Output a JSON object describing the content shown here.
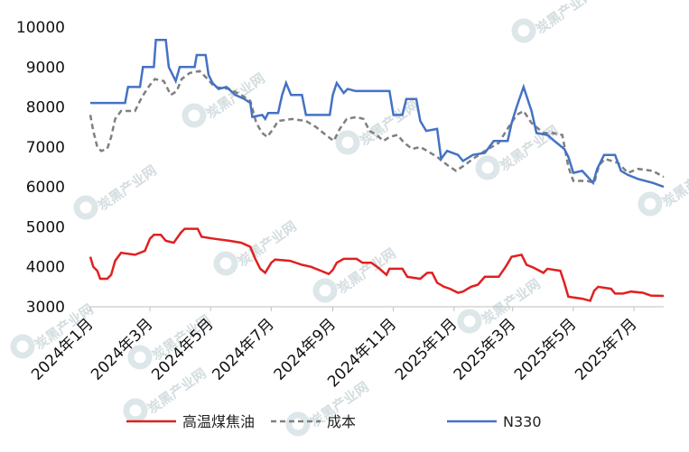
{
  "watermark": {
    "text": "炭黑产业网"
  },
  "chart_data": {
    "type": "line",
    "title": "",
    "xlabel": "",
    "ylabel": "",
    "ylim": [
      3000,
      10000
    ],
    "yticks": [
      3000,
      4000,
      5000,
      6000,
      7000,
      8000,
      9000,
      10000
    ],
    "xlim": [
      "2024-01-01",
      "2025-07-31"
    ],
    "xticks": [
      {
        "label": "2024年1月",
        "date": "2024-01-01"
      },
      {
        "label": "2024年3月",
        "date": "2024-03-01"
      },
      {
        "label": "2024年5月",
        "date": "2024-05-01"
      },
      {
        "label": "2024年7月",
        "date": "2024-07-01"
      },
      {
        "label": "2024年9月",
        "date": "2024-09-01"
      },
      {
        "label": "2024年11月",
        "date": "2024-11-01"
      },
      {
        "label": "2025年1月",
        "date": "2025-01-01"
      },
      {
        "label": "2025年3月",
        "date": "2025-03-01"
      },
      {
        "label": "2025年5月",
        "date": "2025-05-01"
      },
      {
        "label": "2025年7月",
        "date": "2025-07-01"
      }
    ],
    "grid": false,
    "legend": "bottom",
    "series": [
      {
        "name": "高温煤焦油",
        "color": "#e02020",
        "dash": "solid",
        "points": [
          [
            "2024-01-01",
            4250
          ],
          [
            "2024-01-04",
            4000
          ],
          [
            "2024-01-08",
            3900
          ],
          [
            "2024-01-11",
            3700
          ],
          [
            "2024-01-18",
            3700
          ],
          [
            "2024-01-22",
            3800
          ],
          [
            "2024-01-26",
            4150
          ],
          [
            "2024-02-01",
            4350
          ],
          [
            "2024-02-15",
            4300
          ],
          [
            "2024-02-25",
            4400
          ],
          [
            "2024-03-01",
            4700
          ],
          [
            "2024-03-05",
            4800
          ],
          [
            "2024-03-12",
            4800
          ],
          [
            "2024-03-17",
            4650
          ],
          [
            "2024-03-25",
            4600
          ],
          [
            "2024-04-01",
            4850
          ],
          [
            "2024-04-05",
            4950
          ],
          [
            "2024-04-18",
            4950
          ],
          [
            "2024-04-22",
            4750
          ],
          [
            "2024-05-05",
            4700
          ],
          [
            "2024-05-20",
            4650
          ],
          [
            "2024-06-01",
            4600
          ],
          [
            "2024-06-10",
            4500
          ],
          [
            "2024-06-15",
            4200
          ],
          [
            "2024-06-20",
            3950
          ],
          [
            "2024-06-25",
            3850
          ],
          [
            "2024-07-01",
            4100
          ],
          [
            "2024-07-05",
            4180
          ],
          [
            "2024-07-20",
            4150
          ],
          [
            "2024-08-01",
            4050
          ],
          [
            "2024-08-10",
            4000
          ],
          [
            "2024-08-20",
            3900
          ],
          [
            "2024-08-28",
            3820
          ],
          [
            "2024-09-01",
            3920
          ],
          [
            "2024-09-05",
            4100
          ],
          [
            "2024-09-12",
            4200
          ],
          [
            "2024-09-25",
            4200
          ],
          [
            "2024-10-01",
            4100
          ],
          [
            "2024-10-10",
            4100
          ],
          [
            "2024-10-18",
            3950
          ],
          [
            "2024-10-25",
            3800
          ],
          [
            "2024-10-28",
            3950
          ],
          [
            "2024-11-10",
            3950
          ],
          [
            "2024-11-15",
            3750
          ],
          [
            "2024-11-28",
            3700
          ],
          [
            "2024-12-05",
            3850
          ],
          [
            "2024-12-10",
            3850
          ],
          [
            "2024-12-15",
            3600
          ],
          [
            "2024-12-22",
            3500
          ],
          [
            "2024-12-28",
            3450
          ],
          [
            "2025-01-05",
            3350
          ],
          [
            "2025-01-10",
            3380
          ],
          [
            "2025-01-18",
            3500
          ],
          [
            "2025-01-25",
            3550
          ],
          [
            "2025-02-01",
            3750
          ],
          [
            "2025-02-15",
            3750
          ],
          [
            "2025-02-22",
            4000
          ],
          [
            "2025-02-28",
            4250
          ],
          [
            "2025-03-10",
            4300
          ],
          [
            "2025-03-15",
            4050
          ],
          [
            "2025-03-22",
            3980
          ],
          [
            "2025-04-01",
            3850
          ],
          [
            "2025-04-05",
            3950
          ],
          [
            "2025-04-18",
            3900
          ],
          [
            "2025-04-22",
            3600
          ],
          [
            "2025-04-26",
            3250
          ],
          [
            "2025-05-10",
            3200
          ],
          [
            "2025-05-18",
            3150
          ],
          [
            "2025-05-22",
            3400
          ],
          [
            "2025-05-26",
            3500
          ],
          [
            "2025-06-08",
            3450
          ],
          [
            "2025-06-12",
            3330
          ],
          [
            "2025-06-20",
            3330
          ],
          [
            "2025-06-28",
            3380
          ],
          [
            "2025-07-10",
            3350
          ],
          [
            "2025-07-18",
            3280
          ],
          [
            "2025-07-31",
            3270
          ]
        ]
      },
      {
        "name": "成本",
        "color": "#7f7f7f",
        "dash": "dashed",
        "points": [
          [
            "2024-01-01",
            7800
          ],
          [
            "2024-01-04",
            7400
          ],
          [
            "2024-01-08",
            7000
          ],
          [
            "2024-01-12",
            6900
          ],
          [
            "2024-01-18",
            6950
          ],
          [
            "2024-01-22",
            7250
          ],
          [
            "2024-01-26",
            7700
          ],
          [
            "2024-02-01",
            7900
          ],
          [
            "2024-02-15",
            7900
          ],
          [
            "2024-02-22",
            8250
          ],
          [
            "2024-03-01",
            8550
          ],
          [
            "2024-03-06",
            8700
          ],
          [
            "2024-03-15",
            8650
          ],
          [
            "2024-03-22",
            8300
          ],
          [
            "2024-03-28",
            8400
          ],
          [
            "2024-04-02",
            8700
          ],
          [
            "2024-04-10",
            8850
          ],
          [
            "2024-04-20",
            8900
          ],
          [
            "2024-04-28",
            8700
          ],
          [
            "2024-05-05",
            8500
          ],
          [
            "2024-05-20",
            8450
          ],
          [
            "2024-06-01",
            8300
          ],
          [
            "2024-06-10",
            8150
          ],
          [
            "2024-06-16",
            7600
          ],
          [
            "2024-06-22",
            7350
          ],
          [
            "2024-06-27",
            7250
          ],
          [
            "2024-07-03",
            7450
          ],
          [
            "2024-07-08",
            7650
          ],
          [
            "2024-07-22",
            7700
          ],
          [
            "2024-08-05",
            7650
          ],
          [
            "2024-08-15",
            7500
          ],
          [
            "2024-08-25",
            7300
          ],
          [
            "2024-09-02",
            7150
          ],
          [
            "2024-09-08",
            7450
          ],
          [
            "2024-09-15",
            7700
          ],
          [
            "2024-09-25",
            7750
          ],
          [
            "2024-10-02",
            7700
          ],
          [
            "2024-10-08",
            7400
          ],
          [
            "2024-10-15",
            7300
          ],
          [
            "2024-10-22",
            7150
          ],
          [
            "2024-10-28",
            7250
          ],
          [
            "2024-11-05",
            7300
          ],
          [
            "2024-11-12",
            7100
          ],
          [
            "2024-11-20",
            6950
          ],
          [
            "2024-11-28",
            7000
          ],
          [
            "2024-12-05",
            6900
          ],
          [
            "2024-12-15",
            6750
          ],
          [
            "2024-12-25",
            6550
          ],
          [
            "2025-01-03",
            6400
          ],
          [
            "2025-01-12",
            6550
          ],
          [
            "2025-01-20",
            6700
          ],
          [
            "2025-02-01",
            6900
          ],
          [
            "2025-02-15",
            7100
          ],
          [
            "2025-02-25",
            7500
          ],
          [
            "2025-03-05",
            7800
          ],
          [
            "2025-03-12",
            7900
          ],
          [
            "2025-03-20",
            7600
          ],
          [
            "2025-04-01",
            7350
          ],
          [
            "2025-04-10",
            7350
          ],
          [
            "2025-04-20",
            7300
          ],
          [
            "2025-04-26",
            6500
          ],
          [
            "2025-05-01",
            6150
          ],
          [
            "2025-05-15",
            6150
          ],
          [
            "2025-05-22",
            6100
          ],
          [
            "2025-05-27",
            6550
          ],
          [
            "2025-06-02",
            6700
          ],
          [
            "2025-06-15",
            6600
          ],
          [
            "2025-06-25",
            6350
          ],
          [
            "2025-07-05",
            6450
          ],
          [
            "2025-07-20",
            6400
          ],
          [
            "2025-07-31",
            6250
          ]
        ]
      },
      {
        "name": "N330",
        "color": "#4472c4",
        "dash": "solid",
        "points": [
          [
            "2024-01-01",
            8100
          ],
          [
            "2024-01-20",
            8100
          ],
          [
            "2024-02-05",
            8100
          ],
          [
            "2024-02-08",
            8500
          ],
          [
            "2024-02-20",
            8500
          ],
          [
            "2024-02-23",
            9000
          ],
          [
            "2024-03-05",
            9000
          ],
          [
            "2024-03-07",
            9680
          ],
          [
            "2024-03-17",
            9680
          ],
          [
            "2024-03-20",
            9000
          ],
          [
            "2024-03-27",
            8650
          ],
          [
            "2024-03-31",
            9000
          ],
          [
            "2024-04-15",
            9000
          ],
          [
            "2024-04-17",
            9300
          ],
          [
            "2024-04-26",
            9300
          ],
          [
            "2024-04-29",
            8800
          ],
          [
            "2024-05-03",
            8600
          ],
          [
            "2024-05-09",
            8450
          ],
          [
            "2024-05-17",
            8500
          ],
          [
            "2024-05-26",
            8300
          ],
          [
            "2024-06-04",
            8200
          ],
          [
            "2024-06-10",
            8100
          ],
          [
            "2024-06-12",
            7750
          ],
          [
            "2024-06-22",
            7800
          ],
          [
            "2024-06-25",
            7700
          ],
          [
            "2024-06-28",
            7850
          ],
          [
            "2024-07-08",
            7850
          ],
          [
            "2024-07-12",
            8300
          ],
          [
            "2024-07-16",
            8600
          ],
          [
            "2024-07-21",
            8300
          ],
          [
            "2024-08-01",
            8300
          ],
          [
            "2024-08-05",
            7800
          ],
          [
            "2024-08-29",
            7800
          ],
          [
            "2024-09-01",
            8300
          ],
          [
            "2024-09-05",
            8600
          ],
          [
            "2024-09-12",
            8350
          ],
          [
            "2024-09-16",
            8450
          ],
          [
            "2024-09-24",
            8400
          ],
          [
            "2024-10-28",
            8400
          ],
          [
            "2024-11-01",
            7800
          ],
          [
            "2024-11-10",
            7800
          ],
          [
            "2024-11-14",
            8200
          ],
          [
            "2024-11-24",
            8200
          ],
          [
            "2024-11-28",
            7650
          ],
          [
            "2024-12-04",
            7400
          ],
          [
            "2024-12-15",
            7450
          ],
          [
            "2024-12-19",
            6700
          ],
          [
            "2024-12-25",
            6900
          ],
          [
            "2025-01-05",
            6800
          ],
          [
            "2025-01-10",
            6650
          ],
          [
            "2025-01-20",
            6800
          ],
          [
            "2025-02-01",
            6850
          ],
          [
            "2025-02-10",
            7150
          ],
          [
            "2025-02-24",
            7150
          ],
          [
            "2025-02-28",
            7600
          ],
          [
            "2025-03-05",
            8000
          ],
          [
            "2025-03-12",
            8500
          ],
          [
            "2025-03-20",
            7900
          ],
          [
            "2025-03-25",
            7350
          ],
          [
            "2025-04-05",
            7300
          ],
          [
            "2025-04-12",
            7150
          ],
          [
            "2025-04-22",
            6950
          ],
          [
            "2025-04-26",
            6750
          ],
          [
            "2025-05-01",
            6350
          ],
          [
            "2025-05-10",
            6400
          ],
          [
            "2025-05-21",
            6100
          ],
          [
            "2025-05-25",
            6450
          ],
          [
            "2025-06-01",
            6800
          ],
          [
            "2025-06-12",
            6800
          ],
          [
            "2025-06-18",
            6400
          ],
          [
            "2025-06-25",
            6300
          ],
          [
            "2025-07-05",
            6200
          ],
          [
            "2025-07-20",
            6100
          ],
          [
            "2025-07-31",
            6000
          ]
        ]
      }
    ]
  }
}
